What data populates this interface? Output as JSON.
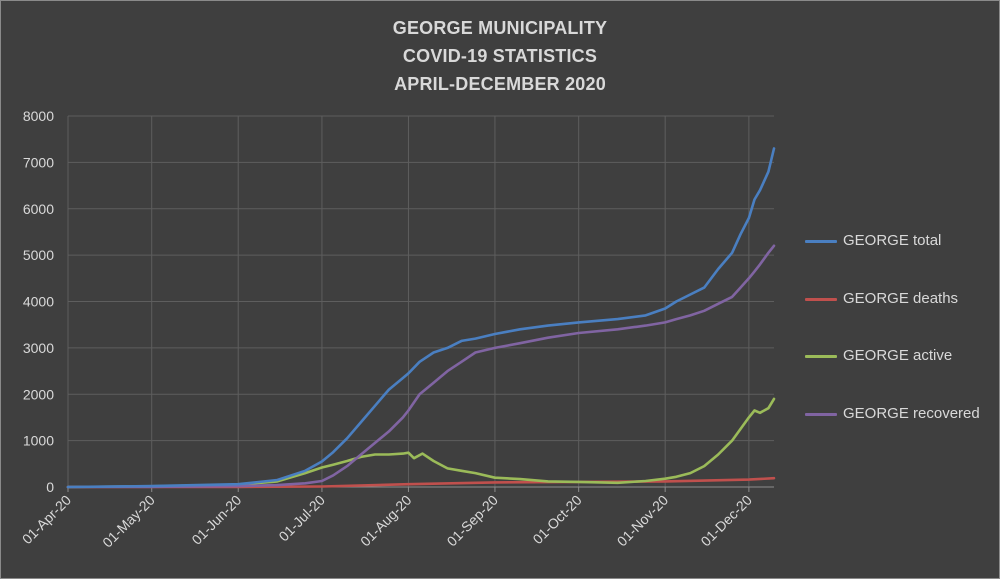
{
  "chart_data": {
    "type": "line",
    "title_lines": [
      "GEORGE MUNICIPALITY",
      "COVID-19 STATISTICS",
      "APRIL-DECEMBER  2020"
    ],
    "xlabel": "",
    "ylabel": "",
    "ylim": [
      0,
      8000
    ],
    "yticks": [
      0,
      1000,
      2000,
      3000,
      4000,
      5000,
      6000,
      7000,
      8000
    ],
    "xlim": [
      "2020-04-01",
      "2020-12-10"
    ],
    "xtick_labels": [
      "01-Apr-20",
      "01-May-20",
      "01-Jun-20",
      "01-Jul-20",
      "01-Aug-20",
      "01-Sep-20",
      "01-Oct-20",
      "01-Nov-20",
      "01-Dec-20"
    ],
    "xtick_dates": [
      "2020-04-01",
      "2020-05-01",
      "2020-06-01",
      "2020-07-01",
      "2020-08-01",
      "2020-09-01",
      "2020-10-01",
      "2020-11-01",
      "2020-12-01"
    ],
    "grid": true,
    "legend_position": "right",
    "background": "#3f3f3f",
    "series": [
      {
        "name": "GEORGE total",
        "color": "#4a7fc1",
        "x": [
          "2020-04-01",
          "2020-05-01",
          "2020-06-01",
          "2020-06-15",
          "2020-06-25",
          "2020-07-01",
          "2020-07-05",
          "2020-07-10",
          "2020-07-15",
          "2020-07-20",
          "2020-07-25",
          "2020-07-30",
          "2020-08-01",
          "2020-08-05",
          "2020-08-10",
          "2020-08-15",
          "2020-08-20",
          "2020-08-25",
          "2020-09-01",
          "2020-09-10",
          "2020-09-20",
          "2020-10-01",
          "2020-10-15",
          "2020-10-25",
          "2020-11-01",
          "2020-11-05",
          "2020-11-10",
          "2020-11-15",
          "2020-11-20",
          "2020-11-25",
          "2020-11-28",
          "2020-12-01",
          "2020-12-03",
          "2020-12-05",
          "2020-12-08",
          "2020-12-10"
        ],
        "values": [
          0,
          20,
          60,
          150,
          350,
          550,
          750,
          1050,
          1400,
          1750,
          2100,
          2350,
          2450,
          2700,
          2900,
          3000,
          3150,
          3200,
          3300,
          3400,
          3480,
          3550,
          3620,
          3700,
          3850,
          4000,
          4150,
          4300,
          4700,
          5050,
          5450,
          5800,
          6200,
          6400,
          6800,
          7300
        ]
      },
      {
        "name": "GEORGE deaths",
        "color": "#c0504d",
        "x": [
          "2020-04-01",
          "2020-06-01",
          "2020-07-01",
          "2020-08-01",
          "2020-09-01",
          "2020-10-01",
          "2020-11-01",
          "2020-12-01",
          "2020-12-10"
        ],
        "values": [
          0,
          2,
          10,
          60,
          100,
          110,
          120,
          160,
          190
        ]
      },
      {
        "name": "GEORGE active",
        "color": "#9bbb59",
        "x": [
          "2020-04-01",
          "2020-05-01",
          "2020-06-01",
          "2020-06-15",
          "2020-06-25",
          "2020-07-01",
          "2020-07-05",
          "2020-07-10",
          "2020-07-15",
          "2020-07-20",
          "2020-07-25",
          "2020-07-30",
          "2020-08-01",
          "2020-08-03",
          "2020-08-06",
          "2020-08-10",
          "2020-08-15",
          "2020-08-20",
          "2020-08-25",
          "2020-09-01",
          "2020-09-10",
          "2020-09-20",
          "2020-10-01",
          "2020-10-15",
          "2020-10-25",
          "2020-11-01",
          "2020-11-05",
          "2020-11-10",
          "2020-11-15",
          "2020-11-20",
          "2020-11-25",
          "2020-11-28",
          "2020-12-01",
          "2020-12-03",
          "2020-12-05",
          "2020-12-08",
          "2020-12-10"
        ],
        "values": [
          0,
          15,
          50,
          120,
          300,
          420,
          480,
          560,
          650,
          700,
          700,
          720,
          740,
          620,
          720,
          560,
          400,
          350,
          300,
          200,
          170,
          120,
          110,
          90,
          130,
          180,
          220,
          300,
          450,
          700,
          1000,
          1250,
          1500,
          1650,
          1600,
          1700,
          1900
        ]
      },
      {
        "name": "GEORGE recovered",
        "color": "#8064a2",
        "x": [
          "2020-04-01",
          "2020-05-01",
          "2020-06-01",
          "2020-06-15",
          "2020-06-25",
          "2020-07-01",
          "2020-07-05",
          "2020-07-10",
          "2020-07-15",
          "2020-07-20",
          "2020-07-25",
          "2020-07-30",
          "2020-08-01",
          "2020-08-05",
          "2020-08-10",
          "2020-08-15",
          "2020-08-20",
          "2020-08-25",
          "2020-09-01",
          "2020-09-10",
          "2020-09-20",
          "2020-10-01",
          "2020-10-15",
          "2020-10-25",
          "2020-11-01",
          "2020-11-05",
          "2020-11-10",
          "2020-11-15",
          "2020-11-20",
          "2020-11-25",
          "2020-11-28",
          "2020-12-01",
          "2020-12-03",
          "2020-12-05",
          "2020-12-08",
          "2020-12-10"
        ],
        "values": [
          0,
          5,
          20,
          40,
          80,
          130,
          250,
          450,
          700,
          950,
          1200,
          1500,
          1650,
          2000,
          2250,
          2500,
          2700,
          2900,
          3000,
          3100,
          3220,
          3320,
          3400,
          3480,
          3550,
          3620,
          3700,
          3800,
          3950,
          4100,
          4300,
          4500,
          4650,
          4800,
          5050,
          5200
        ]
      }
    ]
  }
}
